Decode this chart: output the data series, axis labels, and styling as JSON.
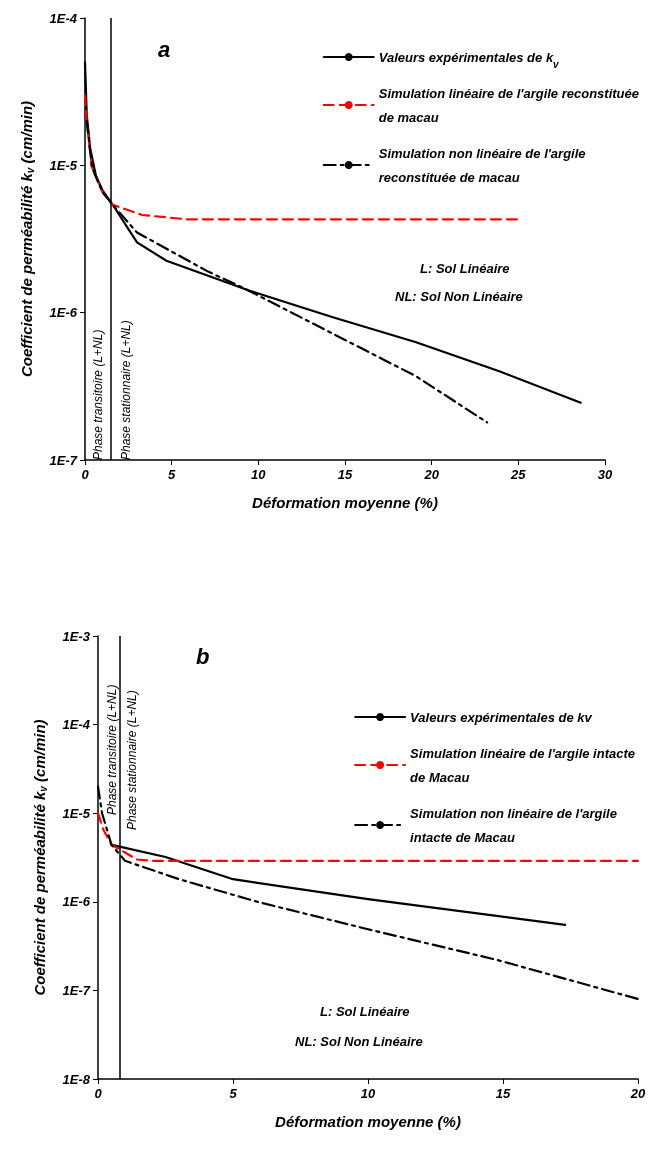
{
  "chart_data": [
    {
      "type": "line",
      "title": "a",
      "xlabel": "Déformation moyenne (%)",
      "ylabel": "Coefficient de perméabilité k$_{v}$ (cm/min)",
      "log": "y",
      "grid": false,
      "legend": "top right",
      "marker": "none",
      "xlim": [
        0,
        30
      ],
      "xticks": [
        0,
        5,
        10,
        15,
        20,
        25,
        30
      ],
      "ylim": [
        1e-07,
        0.0001
      ],
      "yticks": [
        {
          "value": 1e-07,
          "label": "1E-7"
        },
        {
          "value": 1e-06,
          "label": "1E-6"
        },
        {
          "value": 1e-05,
          "label": "1E-5"
        },
        {
          "value": 0.0001,
          "label": "1E-4"
        }
      ],
      "series": [
        {
          "name": "Valeurs expérimentales de k$_{v}$",
          "color": "#000000",
          "line_style": "solid",
          "x": [
            0,
            0.1,
            0.3,
            0.63,
            1.0,
            1.6,
            3.0,
            4.7,
            7.1,
            9.5,
            14.3,
            19.1,
            23.9,
            28.6
          ],
          "values": [
            5e-05,
            2.2e-05,
            1.3e-05,
            8.5e-06,
            6.8e-06,
            5.4e-06,
            3e-06,
            2.25e-06,
            1.78e-06,
            1.41e-06,
            9.3e-07,
            6.3e-07,
            4e-07,
            2.45e-07
          ]
        },
        {
          "name": "Simulation linéaire de l'argile reconstituée de macau",
          "color": "#ff0000",
          "line_style": "dashed",
          "x": [
            0,
            0.1,
            0.4,
            1.0,
            1.6,
            3.3,
            5.9,
            10,
            15,
            20,
            25
          ],
          "values": [
            3e-05,
            2e-05,
            9.7e-06,
            6.6e-06,
            5.4e-06,
            4.6e-06,
            4.3e-06,
            4.3e-06,
            4.3e-06,
            4.3e-06,
            4.3e-06
          ]
        },
        {
          "name": "Simulation non linéaire de l'argile reconstituée de macau",
          "color": "#000000",
          "line_style": "dashdot",
          "x": [
            0.1,
            0.4,
            1.0,
            1.6,
            3.0,
            7.1,
            9.1,
            14.3,
            19.1,
            23.2
          ],
          "values": [
            2e-05,
            9.7e-06,
            6.6e-06,
            5.4e-06,
            3.5e-06,
            1.9e-06,
            1.48e-06,
            7.2e-07,
            3.7e-07,
            1.8e-07
          ]
        }
      ],
      "ref_lines": [
        {
          "axis": "x",
          "value": 1.5,
          "color": "#000000"
        }
      ],
      "annotations": [
        "Phase transitoire (L+NL)",
        "Phase stationnaire (L+NL)",
        "L: Sol Linéaire",
        "NL: Sol Non Linéaire"
      ]
    },
    {
      "type": "line",
      "title": "b",
      "xlabel": "Déformation moyenne (%)",
      "ylabel": "Coefficient de perméabilité k$_{v}$ (cm/min)",
      "log": "y",
      "grid": false,
      "legend": "top right",
      "marker": "none",
      "xlim": [
        0,
        20
      ],
      "xticks": [
        0,
        5,
        10,
        15,
        20
      ],
      "ylim": [
        1e-08,
        0.001
      ],
      "yticks": [
        {
          "value": 1e-08,
          "label": "1E-8"
        },
        {
          "value": 1e-07,
          "label": "1E-7"
        },
        {
          "value": 1e-06,
          "label": "1E-6"
        },
        {
          "value": 1e-05,
          "label": "1E-5"
        },
        {
          "value": 0.0001,
          "label": "1E-4"
        },
        {
          "value": 0.001,
          "label": "1E-3"
        }
      ],
      "series": [
        {
          "name": "Valeurs expérimentales de kv",
          "color": "#000000",
          "line_style": "solid",
          "x": [
            0.5,
            0.8,
            2.5,
            5.0,
            10,
            17.3
          ],
          "values": [
            4.4e-06,
            4.2e-06,
            3.2e-06,
            1.8e-06,
            1.07e-06,
            5.5e-07
          ]
        },
        {
          "name": "Simulation linéaire de l'argile intacte de Macau",
          "color": "#ff0000",
          "line_style": "dashed",
          "x": [
            0,
            0.2,
            0.5,
            1.45,
            2,
            5,
            10,
            15,
            20
          ],
          "values": [
            1e-05,
            6.5e-06,
            4.4e-06,
            3e-06,
            2.9e-06,
            2.9e-06,
            2.9e-06,
            2.9e-06,
            2.9e-06
          ]
        },
        {
          "name": "Simulation non linéaire de l'argile intacte de Macau",
          "color": "#000000",
          "line_style": "dashdot",
          "x": [
            0,
            0.15,
            0.5,
            1.0,
            3.0,
            5.9,
            10,
            14.8,
            20
          ],
          "values": [
            2e-05,
            1e-05,
            4.4e-06,
            2.9e-06,
            1.8e-06,
            1e-06,
            4.9e-07,
            2.2e-07,
            8e-08
          ]
        }
      ],
      "ref_lines": [
        {
          "axis": "x",
          "value": 0.8,
          "color": "#000000"
        }
      ],
      "annotations": [
        "Phase transitoire (L+NL)",
        "Phase stationnaire (L+NL)",
        "L: Sol Linéaire",
        "NL: Sol Non Linéaire"
      ]
    }
  ]
}
